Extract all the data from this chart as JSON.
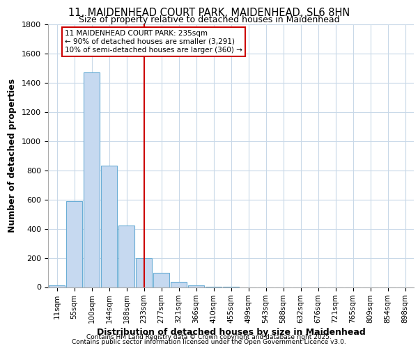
{
  "title_line1": "11, MAIDENHEAD COURT PARK, MAIDENHEAD, SL6 8HN",
  "title_line2": "Size of property relative to detached houses in Maidenhead",
  "xlabel": "Distribution of detached houses by size in Maidenhead",
  "ylabel": "Number of detached properties",
  "categories": [
    "11sqm",
    "55sqm",
    "100sqm",
    "144sqm",
    "188sqm",
    "233sqm",
    "277sqm",
    "321sqm",
    "366sqm",
    "410sqm",
    "455sqm",
    "499sqm",
    "543sqm",
    "588sqm",
    "632sqm",
    "676sqm",
    "721sqm",
    "765sqm",
    "809sqm",
    "854sqm",
    "898sqm"
  ],
  "values": [
    10,
    590,
    1470,
    830,
    420,
    200,
    100,
    35,
    10,
    3,
    1,
    0,
    0,
    0,
    0,
    0,
    0,
    0,
    0,
    0,
    0
  ],
  "bar_color": "#c6d9f0",
  "bar_edge_color": "#6baed6",
  "marker_idx": 5,
  "annotation_title": "11 MAIDENHEAD COURT PARK: 235sqm",
  "annotation_line1": "← 90% of detached houses are smaller (3,291)",
  "annotation_line2": "10% of semi-detached houses are larger (360) →",
  "annotation_box_color": "#cc0000",
  "vertical_line_color": "#cc0000",
  "ylim": [
    0,
    1800
  ],
  "yticks": [
    0,
    200,
    400,
    600,
    800,
    1000,
    1200,
    1400,
    1600,
    1800
  ],
  "footer_line1": "Contains HM Land Registry data © Crown copyright and database right 2025.",
  "footer_line2": "Contains public sector information licensed under the Open Government Licence v3.0.",
  "bg_color": "#ffffff",
  "plot_bg_color": "#ffffff",
  "grid_color": "#c8d8e8"
}
